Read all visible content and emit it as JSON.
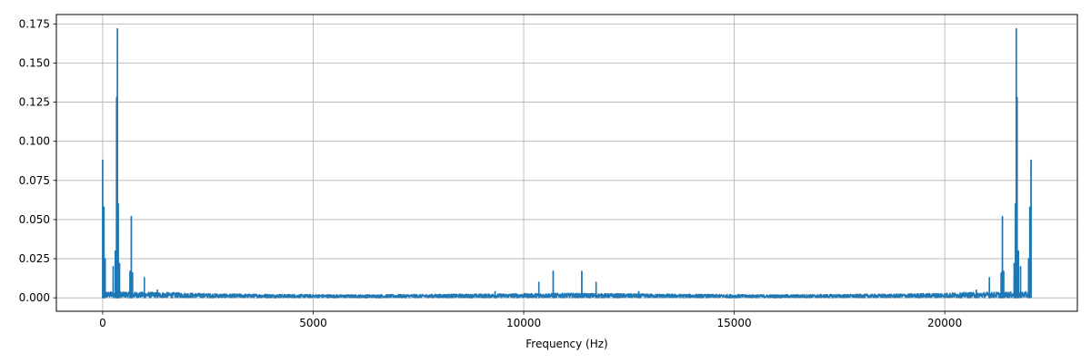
{
  "chart_data": {
    "type": "line",
    "title": "",
    "xlabel": "Frequency (Hz)",
    "ylabel": "",
    "xlim": [
      -1100,
      23150
    ],
    "ylim": [
      -0.0086,
      0.181
    ],
    "grid": true,
    "legend": "none",
    "x_ticks": [
      0,
      5000,
      10000,
      15000,
      20000
    ],
    "x_tick_labels": [
      "0",
      "5000",
      "10000",
      "15000",
      "20000"
    ],
    "y_ticks": [
      0.0,
      0.025,
      0.05,
      0.075,
      0.1,
      0.125,
      0.15,
      0.175
    ],
    "y_tick_labels": [
      "0.000",
      "0.025",
      "0.050",
      "0.075",
      "0.100",
      "0.125",
      "0.150",
      "0.175"
    ],
    "colors": {
      "line": "#1f77b4",
      "grid": "#b0b0b0",
      "axes": "#000000"
    },
    "series": [
      {
        "x_range": [
          0,
          22050
        ],
        "noise_floor": [
          [
            0,
            0.004
          ],
          [
            1500,
            0.0035
          ],
          [
            3000,
            0.0025
          ],
          [
            6000,
            0.002
          ],
          [
            9000,
            0.0025
          ],
          [
            11000,
            0.003
          ],
          [
            13000,
            0.0025
          ],
          [
            16000,
            0.002
          ],
          [
            19000,
            0.0025
          ],
          [
            20600,
            0.0035
          ],
          [
            22050,
            0.004
          ]
        ],
        "peaks": [
          {
            "x": 0,
            "y": 0.088
          },
          {
            "x": 30,
            "y": 0.058
          },
          {
            "x": 60,
            "y": 0.025
          },
          {
            "x": 250,
            "y": 0.02
          },
          {
            "x": 300,
            "y": 0.03
          },
          {
            "x": 330,
            "y": 0.128
          },
          {
            "x": 350,
            "y": 0.172
          },
          {
            "x": 370,
            "y": 0.06
          },
          {
            "x": 400,
            "y": 0.022
          },
          {
            "x": 650,
            "y": 0.017
          },
          {
            "x": 680,
            "y": 0.052
          },
          {
            "x": 710,
            "y": 0.016
          },
          {
            "x": 990,
            "y": 0.013
          },
          {
            "x": 1300,
            "y": 0.005
          },
          {
            "x": 9320,
            "y": 0.004
          },
          {
            "x": 10360,
            "y": 0.01
          },
          {
            "x": 10700,
            "y": 0.017
          },
          {
            "x": 11380,
            "y": 0.017
          },
          {
            "x": 11720,
            "y": 0.01
          },
          {
            "x": 12730,
            "y": 0.004
          },
          {
            "x": 20750,
            "y": 0.005
          },
          {
            "x": 21060,
            "y": 0.013
          },
          {
            "x": 21340,
            "y": 0.016
          },
          {
            "x": 21370,
            "y": 0.052
          },
          {
            "x": 21400,
            "y": 0.017
          },
          {
            "x": 21650,
            "y": 0.022
          },
          {
            "x": 21680,
            "y": 0.06
          },
          {
            "x": 21700,
            "y": 0.172
          },
          {
            "x": 21720,
            "y": 0.128
          },
          {
            "x": 21750,
            "y": 0.03
          },
          {
            "x": 21800,
            "y": 0.02
          },
          {
            "x": 21990,
            "y": 0.025
          },
          {
            "x": 22020,
            "y": 0.058
          },
          {
            "x": 22050,
            "y": 0.088
          }
        ]
      }
    ]
  }
}
